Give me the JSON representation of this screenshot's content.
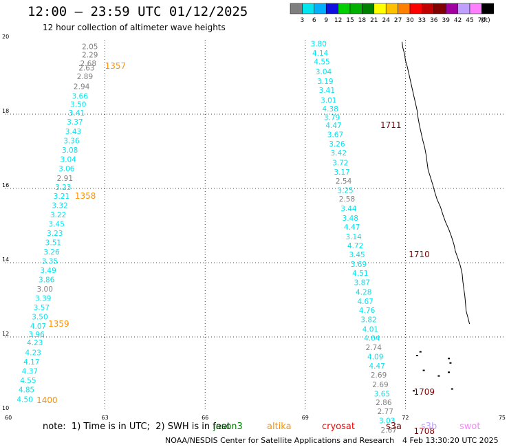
{
  "header": {
    "title": "12:00 — 23:59 UTC 01/12/2025",
    "subtitle": "12 hour collection of altimeter wave heights"
  },
  "legend": {
    "unit": "(ft)",
    "bins": [
      {
        "label": "3",
        "color": "#7f7f7f"
      },
      {
        "label": "6",
        "color": "#00e5ee"
      },
      {
        "label": "9",
        "color": "#00b0ff"
      },
      {
        "label": "12",
        "color": "#1010e0"
      },
      {
        "label": "15",
        "color": "#00d000"
      },
      {
        "label": "18",
        "color": "#00b000"
      },
      {
        "label": "21",
        "color": "#008000"
      },
      {
        "label": "24",
        "color": "#ffff00"
      },
      {
        "label": "27",
        "color": "#ffc000"
      },
      {
        "label": "30",
        "color": "#ff8000"
      },
      {
        "label": "33",
        "color": "#ff0000"
      },
      {
        "label": "36",
        "color": "#c00000"
      },
      {
        "label": "39",
        "color": "#800000"
      },
      {
        "label": "42",
        "color": "#a000a0"
      },
      {
        "label": "45",
        "color": "#c0a0ff"
      },
      {
        "label": "70",
        "color": "#ff80ff"
      },
      {
        "label": "",
        "color": "#000000"
      }
    ]
  },
  "footer": {
    "note": "note:  1) Time is in UTC;  2) SWH is in feet",
    "credit": "NOAA/NESDIS Center for Satellite Applications and Research",
    "timestamp": "4 Feb 13:30:20 UTC 2025",
    "missions": [
      {
        "name": "jason3",
        "color": "#008000"
      },
      {
        "name": "altika",
        "color": "#ff9000"
      },
      {
        "name": "cryosat",
        "color": "#ff0000"
      },
      {
        "name": "s3a",
        "color": "#800000"
      },
      {
        "name": "s3b",
        "color": "#c0a0ff"
      },
      {
        "name": "swot",
        "color": "#ff80ff"
      }
    ]
  },
  "chart_data": {
    "type": "scatter",
    "xlim": [
      60,
      75
    ],
    "ylim": [
      10,
      20
    ],
    "xticks": [
      "60",
      "63",
      "66",
      "69",
      "72",
      "75"
    ],
    "yticks": [
      "10",
      "12",
      "14",
      "16",
      "18",
      "20"
    ],
    "grid": true,
    "colors": {
      "low": "#7f7f7f",
      "mid": "#00e5ee"
    },
    "series": [
      {
        "name": "track-west",
        "points": [
          {
            "x": 62.55,
            "y": 19.82,
            "v": "2.05",
            "c": "low"
          },
          {
            "x": 62.55,
            "y": 19.6,
            "v": "2.29",
            "c": "low"
          },
          {
            "x": 62.5,
            "y": 19.37,
            "v": "2.68",
            "c": "low"
          },
          {
            "x": 62.45,
            "y": 19.25,
            "v": "2.63",
            "c": "low"
          },
          {
            "x": 62.4,
            "y": 19.02,
            "v": "2.89",
            "c": "low"
          },
          {
            "x": 62.3,
            "y": 18.75,
            "v": "2.94",
            "c": "low"
          },
          {
            "x": 62.25,
            "y": 18.49,
            "v": "3.66",
            "c": "mid"
          },
          {
            "x": 62.2,
            "y": 18.27,
            "v": "3.50",
            "c": "mid"
          },
          {
            "x": 62.15,
            "y": 18.04,
            "v": "3.41",
            "c": "mid"
          },
          {
            "x": 62.1,
            "y": 17.8,
            "v": "3.37",
            "c": "mid"
          },
          {
            "x": 62.05,
            "y": 17.54,
            "v": "3.43",
            "c": "mid"
          },
          {
            "x": 62.0,
            "y": 17.29,
            "v": "3.36",
            "c": "mid"
          },
          {
            "x": 61.95,
            "y": 17.04,
            "v": "3.08",
            "c": "mid"
          },
          {
            "x": 61.9,
            "y": 16.79,
            "v": "3.04",
            "c": "mid"
          },
          {
            "x": 61.85,
            "y": 16.54,
            "v": "3.06",
            "c": "mid"
          },
          {
            "x": 61.8,
            "y": 16.28,
            "v": "2.91",
            "c": "low"
          },
          {
            "x": 61.75,
            "y": 16.04,
            "v": "3.23",
            "c": "mid"
          },
          {
            "x": 61.7,
            "y": 15.8,
            "v": "3.21",
            "c": "mid"
          },
          {
            "x": 61.65,
            "y": 15.55,
            "v": "3.32",
            "c": "mid"
          },
          {
            "x": 61.6,
            "y": 15.3,
            "v": "3.22",
            "c": "mid"
          },
          {
            "x": 61.55,
            "y": 15.05,
            "v": "3.45",
            "c": "mid"
          },
          {
            "x": 61.5,
            "y": 14.8,
            "v": "3.23",
            "c": "mid"
          },
          {
            "x": 61.45,
            "y": 14.55,
            "v": "3.51",
            "c": "mid"
          },
          {
            "x": 61.4,
            "y": 14.3,
            "v": "3.26",
            "c": "mid"
          },
          {
            "x": 61.35,
            "y": 14.05,
            "v": "3.35",
            "c": "mid"
          },
          {
            "x": 61.3,
            "y": 13.8,
            "v": "3.49",
            "c": "mid"
          },
          {
            "x": 61.25,
            "y": 13.55,
            "v": "3.86",
            "c": "mid"
          },
          {
            "x": 61.2,
            "y": 13.3,
            "v": "3.00",
            "c": "low"
          },
          {
            "x": 61.15,
            "y": 13.05,
            "v": "3.39",
            "c": "mid"
          },
          {
            "x": 61.1,
            "y": 12.8,
            "v": "3.57",
            "c": "mid"
          },
          {
            "x": 61.05,
            "y": 12.55,
            "v": "3.50",
            "c": "mid"
          },
          {
            "x": 61.0,
            "y": 12.3,
            "v": "4.07",
            "c": "mid"
          },
          {
            "x": 60.95,
            "y": 12.07,
            "v": "3.96",
            "c": "mid"
          },
          {
            "x": 60.9,
            "y": 11.85,
            "v": "4.23",
            "c": "mid"
          },
          {
            "x": 60.85,
            "y": 11.58,
            "v": "4.23",
            "c": "mid"
          },
          {
            "x": 60.8,
            "y": 11.33,
            "v": "4.17",
            "c": "mid"
          },
          {
            "x": 60.75,
            "y": 11.08,
            "v": "4.37",
            "c": "mid"
          },
          {
            "x": 60.7,
            "y": 10.83,
            "v": "4.55",
            "c": "mid"
          },
          {
            "x": 60.65,
            "y": 10.58,
            "v": "4.85",
            "c": "mid"
          },
          {
            "x": 60.6,
            "y": 10.32,
            "v": "4.50",
            "c": "mid"
          }
        ]
      },
      {
        "name": "track-east",
        "points": [
          {
            "x": 69.4,
            "y": 19.9,
            "v": "3.80",
            "c": "mid"
          },
          {
            "x": 69.45,
            "y": 19.65,
            "v": "4.14",
            "c": "mid"
          },
          {
            "x": 69.5,
            "y": 19.42,
            "v": "4.55",
            "c": "mid"
          },
          {
            "x": 69.55,
            "y": 19.15,
            "v": "3.04",
            "c": "mid"
          },
          {
            "x": 69.6,
            "y": 18.89,
            "v": "3.19",
            "c": "mid"
          },
          {
            "x": 69.65,
            "y": 18.65,
            "v": "3.41",
            "c": "mid"
          },
          {
            "x": 69.7,
            "y": 18.38,
            "v": "3.01",
            "c": "mid"
          },
          {
            "x": 69.75,
            "y": 18.15,
            "v": "4.38",
            "c": "mid"
          },
          {
            "x": 69.8,
            "y": 17.92,
            "v": "3.79",
            "c": "mid"
          },
          {
            "x": 69.85,
            "y": 17.7,
            "v": "4.47",
            "c": "mid"
          },
          {
            "x": 69.9,
            "y": 17.45,
            "v": "3.67",
            "c": "mid"
          },
          {
            "x": 69.95,
            "y": 17.2,
            "v": "3.26",
            "c": "mid"
          },
          {
            "x": 70.0,
            "y": 16.96,
            "v": "3.42",
            "c": "mid"
          },
          {
            "x": 70.05,
            "y": 16.69,
            "v": "3.72",
            "c": "mid"
          },
          {
            "x": 70.1,
            "y": 16.44,
            "v": "3.17",
            "c": "mid"
          },
          {
            "x": 70.15,
            "y": 16.2,
            "v": "2.54",
            "c": "low"
          },
          {
            "x": 70.2,
            "y": 15.95,
            "v": "3.25",
            "c": "mid"
          },
          {
            "x": 70.25,
            "y": 15.72,
            "v": "2.58",
            "c": "low"
          },
          {
            "x": 70.3,
            "y": 15.46,
            "v": "3.44",
            "c": "mid"
          },
          {
            "x": 70.35,
            "y": 15.2,
            "v": "3.48",
            "c": "mid"
          },
          {
            "x": 70.4,
            "y": 14.96,
            "v": "4.47",
            "c": "mid"
          },
          {
            "x": 70.45,
            "y": 14.7,
            "v": "3.14",
            "c": "mid"
          },
          {
            "x": 70.5,
            "y": 14.46,
            "v": "4.72",
            "c": "mid"
          },
          {
            "x": 70.55,
            "y": 14.22,
            "v": "3.45",
            "c": "mid"
          },
          {
            "x": 70.6,
            "y": 13.96,
            "v": "3.69",
            "c": "mid"
          },
          {
            "x": 70.65,
            "y": 13.72,
            "v": "4.51",
            "c": "mid"
          },
          {
            "x": 70.7,
            "y": 13.47,
            "v": "3.87",
            "c": "mid"
          },
          {
            "x": 70.75,
            "y": 13.21,
            "v": "4.28",
            "c": "mid"
          },
          {
            "x": 70.8,
            "y": 12.96,
            "v": "4.67",
            "c": "mid"
          },
          {
            "x": 70.85,
            "y": 12.72,
            "v": "4.76",
            "c": "mid"
          },
          {
            "x": 70.9,
            "y": 12.47,
            "v": "3.82",
            "c": "mid"
          },
          {
            "x": 70.95,
            "y": 12.21,
            "v": "4.01",
            "c": "mid"
          },
          {
            "x": 71.0,
            "y": 11.97,
            "v": "4.04",
            "c": "mid"
          },
          {
            "x": 71.05,
            "y": 11.72,
            "v": "2.74",
            "c": "low"
          },
          {
            "x": 71.1,
            "y": 11.47,
            "v": "4.09",
            "c": "mid"
          },
          {
            "x": 71.15,
            "y": 11.22,
            "v": "4.47",
            "c": "mid"
          },
          {
            "x": 71.2,
            "y": 10.98,
            "v": "2.69",
            "c": "low"
          },
          {
            "x": 71.25,
            "y": 10.72,
            "v": "2.69",
            "c": "low"
          },
          {
            "x": 71.3,
            "y": 10.47,
            "v": "3.65",
            "c": "mid"
          },
          {
            "x": 71.35,
            "y": 10.24,
            "v": "2.86",
            "c": "low"
          },
          {
            "x": 71.4,
            "y": 10.0,
            "v": "2.77",
            "c": "low"
          },
          {
            "x": 71.45,
            "y": 9.75,
            "v": "3.03",
            "c": "mid"
          },
          {
            "x": 71.5,
            "y": 9.5,
            "v": "2.67",
            "c": "low"
          }
        ]
      }
    ],
    "pass_labels": [
      {
        "text": "1357",
        "x": 63.0,
        "y": 19.3,
        "color": "#ff9000"
      },
      {
        "text": "1358",
        "x": 62.1,
        "y": 15.8,
        "color": "#ff9000"
      },
      {
        "text": "1359",
        "x": 61.3,
        "y": 12.35,
        "color": "#ff9000"
      },
      {
        "text": "1400",
        "x": 60.95,
        "y": 10.3,
        "color": "#ff9000"
      },
      {
        "text": "1711",
        "x": 71.25,
        "y": 17.7,
        "color": "#800000"
      },
      {
        "text": "1710",
        "x": 72.1,
        "y": 14.22,
        "color": "#800000"
      },
      {
        "text": "1709",
        "x": 72.25,
        "y": 10.52,
        "color": "#800000"
      },
      {
        "text": "1708",
        "x": 72.25,
        "y": 9.46,
        "color": "#800000"
      }
    ],
    "coastline": [
      [
        71.9,
        19.95
      ],
      [
        71.92,
        19.8
      ],
      [
        71.98,
        19.6
      ],
      [
        72.0,
        19.45
      ],
      [
        72.05,
        19.3
      ],
      [
        72.1,
        19.1
      ],
      [
        72.15,
        18.9
      ],
      [
        72.2,
        18.7
      ],
      [
        72.25,
        18.5
      ],
      [
        72.3,
        18.3
      ],
      [
        72.35,
        18.1
      ],
      [
        72.38,
        17.9
      ],
      [
        72.42,
        17.7
      ],
      [
        72.47,
        17.5
      ],
      [
        72.52,
        17.3
      ],
      [
        72.58,
        17.1
      ],
      [
        72.62,
        16.9
      ],
      [
        72.65,
        16.7
      ],
      [
        72.68,
        16.5
      ],
      [
        72.75,
        16.3
      ],
      [
        72.82,
        16.1
      ],
      [
        72.88,
        15.9
      ],
      [
        72.95,
        15.7
      ],
      [
        73.05,
        15.5
      ],
      [
        73.12,
        15.3
      ],
      [
        73.2,
        15.1
      ],
      [
        73.3,
        14.9
      ],
      [
        73.38,
        14.7
      ],
      [
        73.45,
        14.5
      ],
      [
        73.5,
        14.3
      ],
      [
        73.58,
        14.1
      ],
      [
        73.65,
        13.9
      ],
      [
        73.7,
        13.7
      ],
      [
        73.72,
        13.5
      ],
      [
        73.75,
        13.3
      ],
      [
        73.78,
        13.1
      ],
      [
        73.8,
        12.9
      ],
      [
        73.82,
        12.7
      ],
      [
        73.88,
        12.5
      ],
      [
        73.92,
        12.35
      ]
    ],
    "islands": [
      [
        72.45,
        11.6
      ],
      [
        72.35,
        11.5
      ],
      [
        72.55,
        11.1
      ],
      [
        73.3,
        11.42
      ],
      [
        73.35,
        11.3
      ],
      [
        73.3,
        11.05
      ],
      [
        73.0,
        10.95
      ],
      [
        72.25,
        10.55
      ],
      [
        73.4,
        10.6
      ]
    ]
  }
}
